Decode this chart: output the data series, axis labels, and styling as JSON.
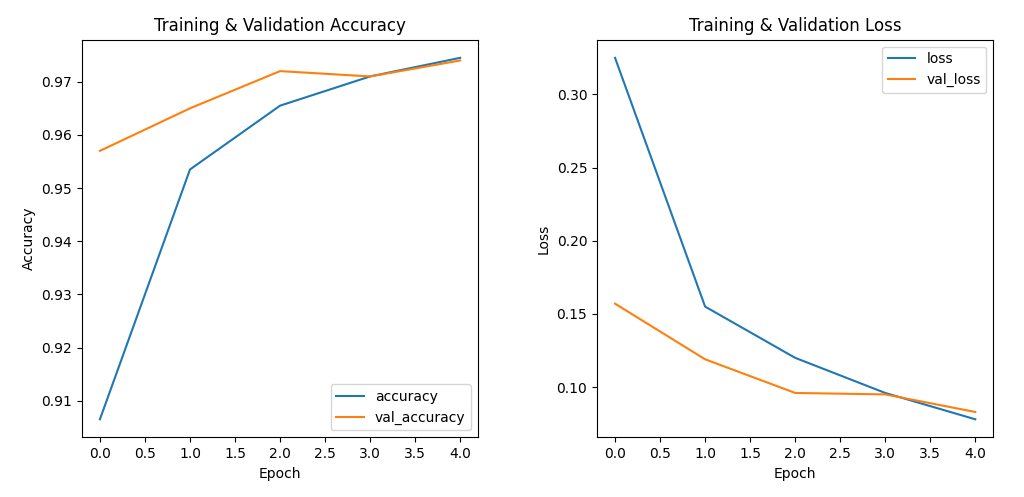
{
  "epochs": [
    0,
    1,
    2,
    3,
    4
  ],
  "accuracy": [
    0.9065,
    0.9535,
    0.9655,
    0.971,
    0.9745
  ],
  "val_accuracy": [
    0.957,
    0.965,
    0.972,
    0.971,
    0.974
  ],
  "loss": [
    0.325,
    0.155,
    0.12,
    0.096,
    0.078
  ],
  "val_loss": [
    0.157,
    0.119,
    0.096,
    0.095,
    0.083
  ],
  "acc_title": "Training & Validation Accuracy",
  "loss_title": "Training & Validation Loss",
  "xlabel": "Epoch",
  "acc_ylabel": "Accuracy",
  "loss_ylabel": "Loss",
  "acc_legend": [
    "accuracy",
    "val_accuracy"
  ],
  "loss_legend": [
    "loss",
    "val_loss"
  ],
  "blue_color": "#1f77b4",
  "orange_color": "#ff7f0e",
  "bg_color": "#ffffff",
  "fig_bg_color": "#ffffff"
}
